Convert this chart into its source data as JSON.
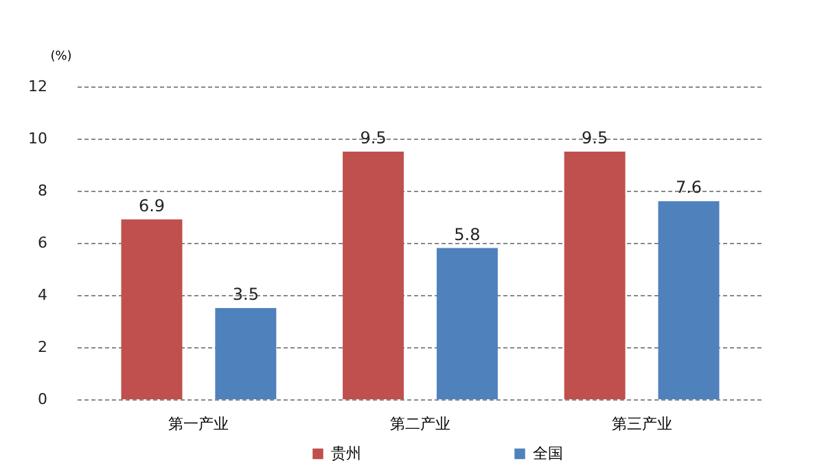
{
  "chart_data": {
    "type": "bar",
    "ylabel": "(%)",
    "categories": [
      "第一产业",
      "第二产业",
      "第三产业"
    ],
    "series": [
      {
        "name": "贵州",
        "color": "#c0504d",
        "values": [
          6.9,
          9.5,
          9.5
        ]
      },
      {
        "name": "全国",
        "color": "#4f81bd",
        "values": [
          3.5,
          5.8,
          7.6
        ]
      }
    ],
    "ylim": [
      0,
      12
    ],
    "yticks": [
      0,
      2,
      4,
      6,
      8,
      10,
      12
    ],
    "grid": "y",
    "legend": "bottom",
    "data_labels": true
  }
}
